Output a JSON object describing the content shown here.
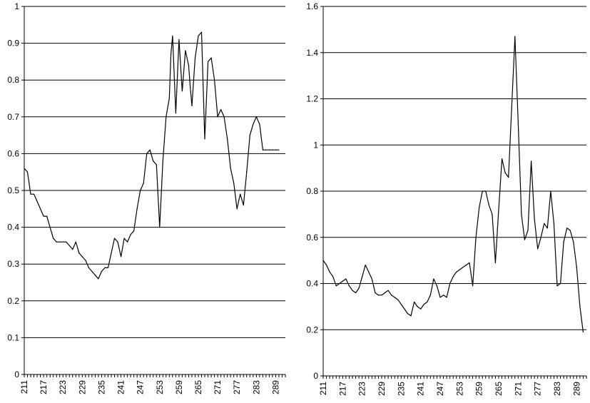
{
  "chart_data": [
    {
      "type": "line",
      "title": "",
      "xlabel": "",
      "ylabel": "",
      "ylim": [
        0,
        1
      ],
      "xlim": [
        211,
        292
      ],
      "grid": true,
      "legend": "none",
      "line_color": "#000000",
      "y_ticks": [
        "0",
        "0.1",
        "0.2",
        "0.3",
        "0.4",
        "0.5",
        "0.6",
        "0.7",
        "0.8",
        "0.9",
        "1"
      ],
      "y_tick_values": [
        0,
        0.1,
        0.2,
        0.3,
        0.4,
        0.5,
        0.6,
        0.7,
        0.8,
        0.9,
        1
      ],
      "x_ticks": [
        "211",
        "217",
        "223",
        "229",
        "235",
        "241",
        "247",
        "253",
        "259",
        "265",
        "271",
        "277",
        "283",
        "289"
      ],
      "x_tick_values": [
        211,
        217,
        223,
        229,
        235,
        241,
        247,
        253,
        259,
        265,
        271,
        277,
        283,
        289
      ],
      "series": [
        {
          "x": [
            211,
            212,
            213,
            214,
            215,
            216,
            217,
            218,
            219,
            220,
            221,
            222,
            223,
            224,
            225,
            226,
            227,
            228,
            229,
            230,
            231,
            232,
            233,
            234,
            235,
            236,
            237,
            238,
            239,
            240,
            241,
            242,
            243,
            244,
            245,
            246,
            247,
            248,
            249,
            250,
            251,
            252,
            253,
            254,
            255,
            256,
            256.5,
            257,
            258,
            259,
            260,
            261,
            262,
            262.5,
            263,
            264,
            265,
            266,
            267,
            268,
            269,
            270,
            271,
            272,
            273,
            274,
            275,
            276,
            277,
            278,
            279,
            280,
            281,
            282,
            283,
            284,
            285,
            286,
            287,
            288,
            289,
            290
          ],
          "y": [
            0.56,
            0.55,
            0.49,
            0.49,
            0.47,
            0.45,
            0.43,
            0.43,
            0.4,
            0.37,
            0.36,
            0.36,
            0.36,
            0.36,
            0.35,
            0.34,
            0.36,
            0.33,
            0.32,
            0.31,
            0.29,
            0.28,
            0.27,
            0.26,
            0.28,
            0.29,
            0.29,
            0.33,
            0.37,
            0.36,
            0.32,
            0.37,
            0.36,
            0.38,
            0.39,
            0.45,
            0.5,
            0.52,
            0.6,
            0.61,
            0.58,
            0.57,
            0.4,
            0.58,
            0.7,
            0.75,
            0.87,
            0.92,
            0.71,
            0.91,
            0.77,
            0.88,
            0.84,
            0.78,
            0.73,
            0.86,
            0.92,
            0.93,
            0.64,
            0.85,
            0.86,
            0.8,
            0.7,
            0.72,
            0.7,
            0.64,
            0.56,
            0.52,
            0.45,
            0.49,
            0.46,
            0.55,
            0.65,
            0.68,
            0.7,
            0.68,
            0.61,
            0.61,
            0.61,
            0.61,
            0.61,
            0.61
          ]
        }
      ]
    },
    {
      "type": "line",
      "title": "",
      "xlabel": "",
      "ylabel": "",
      "ylim": [
        0,
        1.6
      ],
      "xlim": [
        211,
        292
      ],
      "grid": true,
      "legend": "none",
      "line_color": "#000000",
      "y_ticks": [
        "0",
        "0.2",
        "0.4",
        "0.6",
        "0.8",
        "1",
        "1.2",
        "1.4",
        "1.6"
      ],
      "y_tick_values": [
        0,
        0.2,
        0.4,
        0.6,
        0.8,
        1,
        1.2,
        1.4,
        1.6
      ],
      "x_ticks": [
        "211",
        "217",
        "223",
        "229",
        "235",
        "241",
        "247",
        "253",
        "259",
        "265",
        "271",
        "277",
        "283",
        "289"
      ],
      "x_tick_values": [
        211,
        217,
        223,
        229,
        235,
        241,
        247,
        253,
        259,
        265,
        271,
        277,
        283,
        289
      ],
      "series": [
        {
          "x": [
            211,
            212,
            213,
            214,
            215,
            216,
            217,
            218,
            219,
            220,
            221,
            222,
            223,
            224,
            225,
            226,
            227,
            228,
            229,
            230,
            231,
            232,
            233,
            234,
            235,
            236,
            237,
            238,
            239,
            240,
            241,
            242,
            243,
            244,
            245,
            246,
            247,
            248,
            249,
            250,
            251,
            252,
            253,
            254,
            255,
            256,
            257,
            258,
            259,
            260,
            261,
            262,
            263,
            264,
            265,
            266,
            267,
            268,
            269,
            270,
            271,
            272,
            273,
            274,
            275,
            276,
            277,
            278,
            279,
            280,
            281,
            282,
            283,
            284,
            285,
            286,
            287,
            288,
            289,
            290,
            291
          ],
          "y": [
            0.5,
            0.48,
            0.45,
            0.43,
            0.39,
            0.4,
            0.41,
            0.42,
            0.39,
            0.37,
            0.36,
            0.38,
            0.43,
            0.48,
            0.45,
            0.42,
            0.36,
            0.35,
            0.35,
            0.36,
            0.37,
            0.35,
            0.34,
            0.33,
            0.31,
            0.29,
            0.27,
            0.26,
            0.32,
            0.3,
            0.29,
            0.31,
            0.32,
            0.35,
            0.42,
            0.39,
            0.34,
            0.35,
            0.34,
            0.4,
            0.43,
            0.45,
            0.46,
            0.47,
            0.48,
            0.49,
            0.39,
            0.6,
            0.73,
            0.8,
            0.8,
            0.74,
            0.7,
            0.49,
            0.72,
            0.94,
            0.88,
            0.86,
            1.16,
            1.47,
            1.1,
            0.7,
            0.59,
            0.63,
            0.93,
            0.68,
            0.55,
            0.6,
            0.66,
            0.64,
            0.8,
            0.66,
            0.39,
            0.4,
            0.58,
            0.64,
            0.63,
            0.58,
            0.47,
            0.3,
            0.19
          ]
        }
      ]
    }
  ]
}
